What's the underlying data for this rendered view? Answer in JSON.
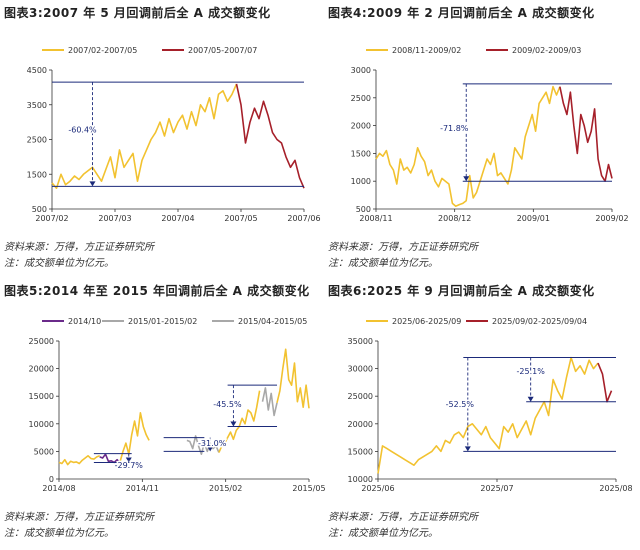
{
  "colors": {
    "yellow": "#F2C230",
    "red": "#A6202A",
    "gray": "#A8A8A8",
    "navy": "#1B2A7A",
    "purple": "#6A2A8A"
  },
  "source_text": "资料来源：万得，方正证券研究所",
  "note_text": "注：成交额单位为亿元。",
  "chart_data": [
    {
      "type": "line",
      "title": "图表3:2007 年 5 月回调前后全 A 成交额变化",
      "ylim": [
        500,
        4500
      ],
      "yticks": [
        500,
        1500,
        2500,
        3500,
        4500
      ],
      "xticks": [
        "2007/02",
        "2007/03",
        "2007/04",
        "2007/05",
        "2007/06"
      ],
      "series": [
        {
          "name": "2007/02-2007/05",
          "color": "yellow",
          "values": [
            1250,
            1100,
            1500,
            1200,
            1300,
            1450,
            1350,
            1500,
            1600,
            1700,
            1500,
            1300,
            1650,
            2000,
            1400,
            2200,
            1700,
            1900,
            2100,
            1300,
            1900,
            2200,
            2500,
            2700,
            3000,
            2600,
            3100,
            2700,
            3000,
            3200,
            2800,
            3300,
            2900,
            3500,
            3300,
            3700,
            3100,
            3800,
            3900,
            3600,
            3800,
            4100
          ]
        },
        {
          "name": "2007/05-2007/07",
          "color": "red",
          "offset": 41,
          "values": [
            4100,
            3500,
            2400,
            3000,
            3400,
            3100,
            3600,
            3200,
            2700,
            2500,
            2400,
            2000,
            1700,
            1900,
            1400,
            1100
          ]
        }
      ],
      "annotations": [
        {
          "text": "-60.4%"
        }
      ]
    },
    {
      "type": "line",
      "title": "图表4:2009 年 2 月回调前后全 A 成交额变化",
      "ylim": [
        500,
        3000
      ],
      "yticks": [
        500,
        1000,
        1500,
        2000,
        2500,
        3000
      ],
      "xticks": [
        "2008/11",
        "2008/12",
        "2009/01",
        "2009/02"
      ],
      "series": [
        {
          "name": "2008/11-2009/02",
          "color": "yellow",
          "values": [
            1400,
            1500,
            1450,
            1550,
            1300,
            1200,
            950,
            1400,
            1200,
            1250,
            1150,
            1300,
            1600,
            1450,
            1350,
            1100,
            1200,
            1000,
            900,
            1050,
            1000,
            950,
            600,
            550,
            580,
            600,
            650,
            1100,
            700,
            800,
            1000,
            1200,
            1400,
            1300,
            1500,
            1100,
            1150,
            1050,
            950,
            1200,
            1600,
            1500,
            1400,
            1800,
            2000,
            2200,
            1900,
            2400,
            2500,
            2600,
            2400,
            2700,
            2550,
            2700
          ]
        },
        {
          "name": "2009/02-2009/03",
          "color": "red",
          "offset": 53,
          "values": [
            2700,
            2400,
            2200,
            2600,
            2000,
            1500,
            2200,
            2000,
            1700,
            1900,
            2300,
            1400,
            1100,
            1000,
            1300,
            1050
          ]
        }
      ],
      "annotations": [
        {
          "text": "-71.8%"
        }
      ]
    },
    {
      "type": "line",
      "title": "图表5:2014 年至 2015 年回调前后全 A 成交额变化",
      "ylim": [
        0,
        25000
      ],
      "yticks": [
        0,
        5000,
        10000,
        15000,
        20000,
        25000
      ],
      "xticks": [
        "2014/08",
        "2014/11",
        "2015/02",
        "2015/05"
      ],
      "series": [
        {
          "name": "2014/10",
          "color": "purple",
          "offset": 14,
          "values": [
            4000,
            3800,
            4500,
            3200,
            3300,
            3000,
            3500,
            2900
          ]
        },
        {
          "name": "2015/01-2015/02",
          "color": "gray",
          "offset": 44,
          "values": [
            7000,
            6800,
            5500,
            7800,
            6000,
            4500,
            6500,
            5000,
            6500,
            5500,
            6000,
            4800
          ]
        },
        {
          "name": "2015/04-2015/05",
          "color": "gray",
          "offset": 70,
          "values": [
            14000,
            16500,
            12500,
            15500,
            11500,
            13800
          ]
        },
        {
          "name": "",
          "color": "yellow",
          "segments": [
            {
              "offset": 0,
              "values": [
                3000,
                2800,
                3500,
                2600,
                3200,
                3000,
                3100,
                2800,
                3400,
                3800,
                4200,
                3700,
                3600,
                4000,
                4200
              ]
            },
            {
              "offset": 21,
              "values": [
                3100,
                5000,
                6500,
                4500,
                8000,
                10500,
                7800,
                12000,
                9500,
                8000,
                7000
              ]
            },
            {
              "offset": 55,
              "values": [
                4800,
                6000,
                6500,
                7500,
                8500,
                7200,
                8800,
                9500,
                11000,
                10000,
                12500,
                12000,
                10500,
                13000,
                16000
              ]
            },
            {
              "offset": 75,
              "values": [
                13800,
                16000,
                20000,
                23500,
                18000,
                17000,
                21000,
                14000,
                16500,
                13000,
                17000,
                12800
              ]
            }
          ]
        }
      ],
      "annotations": [
        {
          "text": "-29.7%"
        },
        {
          "text": "-31.0%"
        },
        {
          "text": "-45.5%"
        }
      ]
    },
    {
      "type": "line",
      "title": "图表6:2025 年 9 月回调前后全 A 成交额变化",
      "ylim": [
        10000,
        35000
      ],
      "yticks": [
        10000,
        15000,
        20000,
        25000,
        30000,
        35000
      ],
      "xticks": [
        "2025/06",
        "2025/07",
        "2025/08"
      ],
      "series": [
        {
          "name": "2025/06-2025/09",
          "color": "yellow",
          "values": [
            11000,
            16000,
            15500,
            15000,
            14500,
            14000,
            13500,
            13000,
            12500,
            13500,
            14000,
            14500,
            15000,
            16000,
            15000,
            17000,
            16500,
            18000,
            18500,
            17500,
            19500,
            20000,
            19000,
            18000,
            19500,
            17500,
            16500,
            15500,
            19500,
            18500,
            20000,
            17500,
            19000,
            20500,
            18000,
            21000,
            22500,
            24000,
            21500,
            28000,
            26000,
            24500,
            28500,
            32000,
            29500,
            30500,
            29000,
            31500,
            30000,
            31000
          ]
        },
        {
          "name": "2025/09/02-2025/09/04",
          "color": "red",
          "offset": 49,
          "values": [
            31000,
            29000,
            24000,
            26000
          ]
        }
      ],
      "annotations": [
        {
          "text": "-52.5%"
        },
        {
          "text": "-25.1%"
        }
      ]
    }
  ]
}
